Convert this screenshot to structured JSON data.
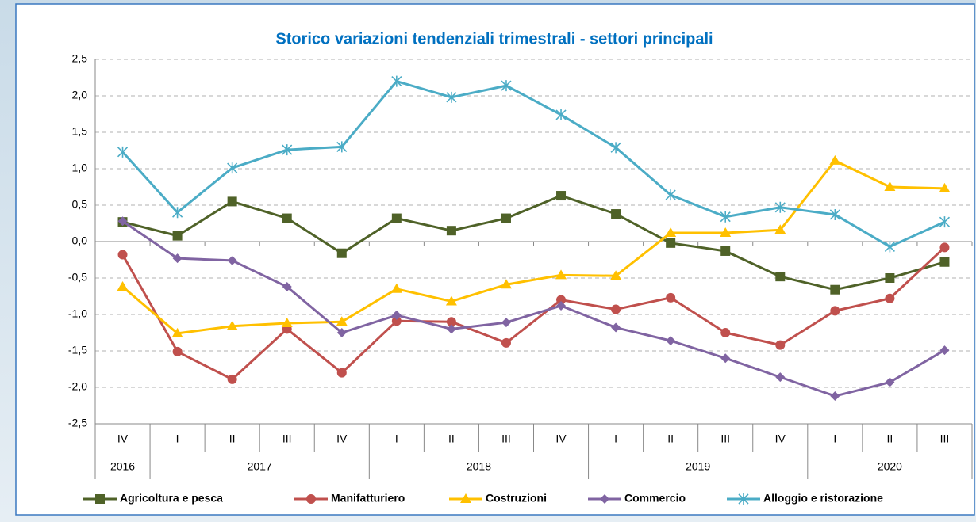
{
  "chart_data": {
    "type": "line",
    "title": "Storico variazioni tendenziali trimestrali - settori principali",
    "categories": [
      "IV",
      "I",
      "II",
      "III",
      "IV",
      "I",
      "II",
      "III",
      "IV",
      "I",
      "II",
      "III",
      "IV",
      "I",
      "II",
      "III"
    ],
    "year_groups": [
      {
        "label": "2016",
        "span": 1
      },
      {
        "label": "2017",
        "span": 4
      },
      {
        "label": "2018",
        "span": 4
      },
      {
        "label": "2019",
        "span": 4
      },
      {
        "label": "2020",
        "span": 3
      }
    ],
    "ylim": [
      -2.5,
      2.5
    ],
    "yticks": [
      {
        "value": -2.5,
        "label": "-2,5"
      },
      {
        "value": -2,
        "label": "-2,0"
      },
      {
        "value": -1.5,
        "label": "-1,5"
      },
      {
        "value": -1,
        "label": "-1,0"
      },
      {
        "value": -0.5,
        "label": "-0,5"
      },
      {
        "value": 0,
        "label": "0,0"
      },
      {
        "value": 0.5,
        "label": "0,5"
      },
      {
        "value": 1,
        "label": "1,0"
      },
      {
        "value": 1.5,
        "label": "1,5"
      },
      {
        "value": 2,
        "label": "2,0"
      },
      {
        "value": 2.5,
        "label": "2,5"
      }
    ],
    "grid": true,
    "legend": "bottom",
    "series": [
      {
        "name": "Agricoltura e pesca",
        "color": "#4f6228",
        "marker": "square",
        "values": [
          0.27,
          0.08,
          0.55,
          0.32,
          -0.16,
          0.32,
          0.15,
          0.32,
          0.63,
          0.38,
          -0.02,
          -0.13,
          -0.48,
          -0.66,
          -0.5,
          -0.28
        ]
      },
      {
        "name": "Manifatturiero",
        "color": "#c0504d",
        "marker": "circle",
        "values": [
          -0.18,
          -1.51,
          -1.89,
          -1.2,
          -1.8,
          -1.09,
          -1.1,
          -1.39,
          -0.8,
          -0.93,
          -0.77,
          -1.25,
          -1.42,
          -0.95,
          -0.78,
          -0.08
        ]
      },
      {
        "name": "Costruzioni",
        "color": "#ffc000",
        "marker": "triangle",
        "values": [
          -0.62,
          -1.26,
          -1.16,
          -1.12,
          -1.1,
          -0.65,
          -0.82,
          -0.59,
          -0.46,
          -0.47,
          0.12,
          0.12,
          0.16,
          1.11,
          0.75,
          0.73
        ]
      },
      {
        "name": "Commercio",
        "color": "#8064a2",
        "marker": "diamond",
        "values": [
          0.28,
          -0.23,
          -0.26,
          -0.62,
          -1.25,
          -1.01,
          -1.2,
          -1.11,
          -0.88,
          -1.18,
          -1.36,
          -1.6,
          -1.86,
          -2.12,
          -1.93,
          -1.49
        ]
      },
      {
        "name": "Alloggio e ristorazione",
        "color": "#4bacc6",
        "marker": "star",
        "values": [
          1.23,
          0.4,
          1.01,
          1.26,
          1.3,
          2.2,
          1.98,
          2.14,
          1.74,
          1.29,
          0.64,
          0.34,
          0.47,
          0.37,
          -0.07,
          0.27
        ]
      }
    ]
  }
}
